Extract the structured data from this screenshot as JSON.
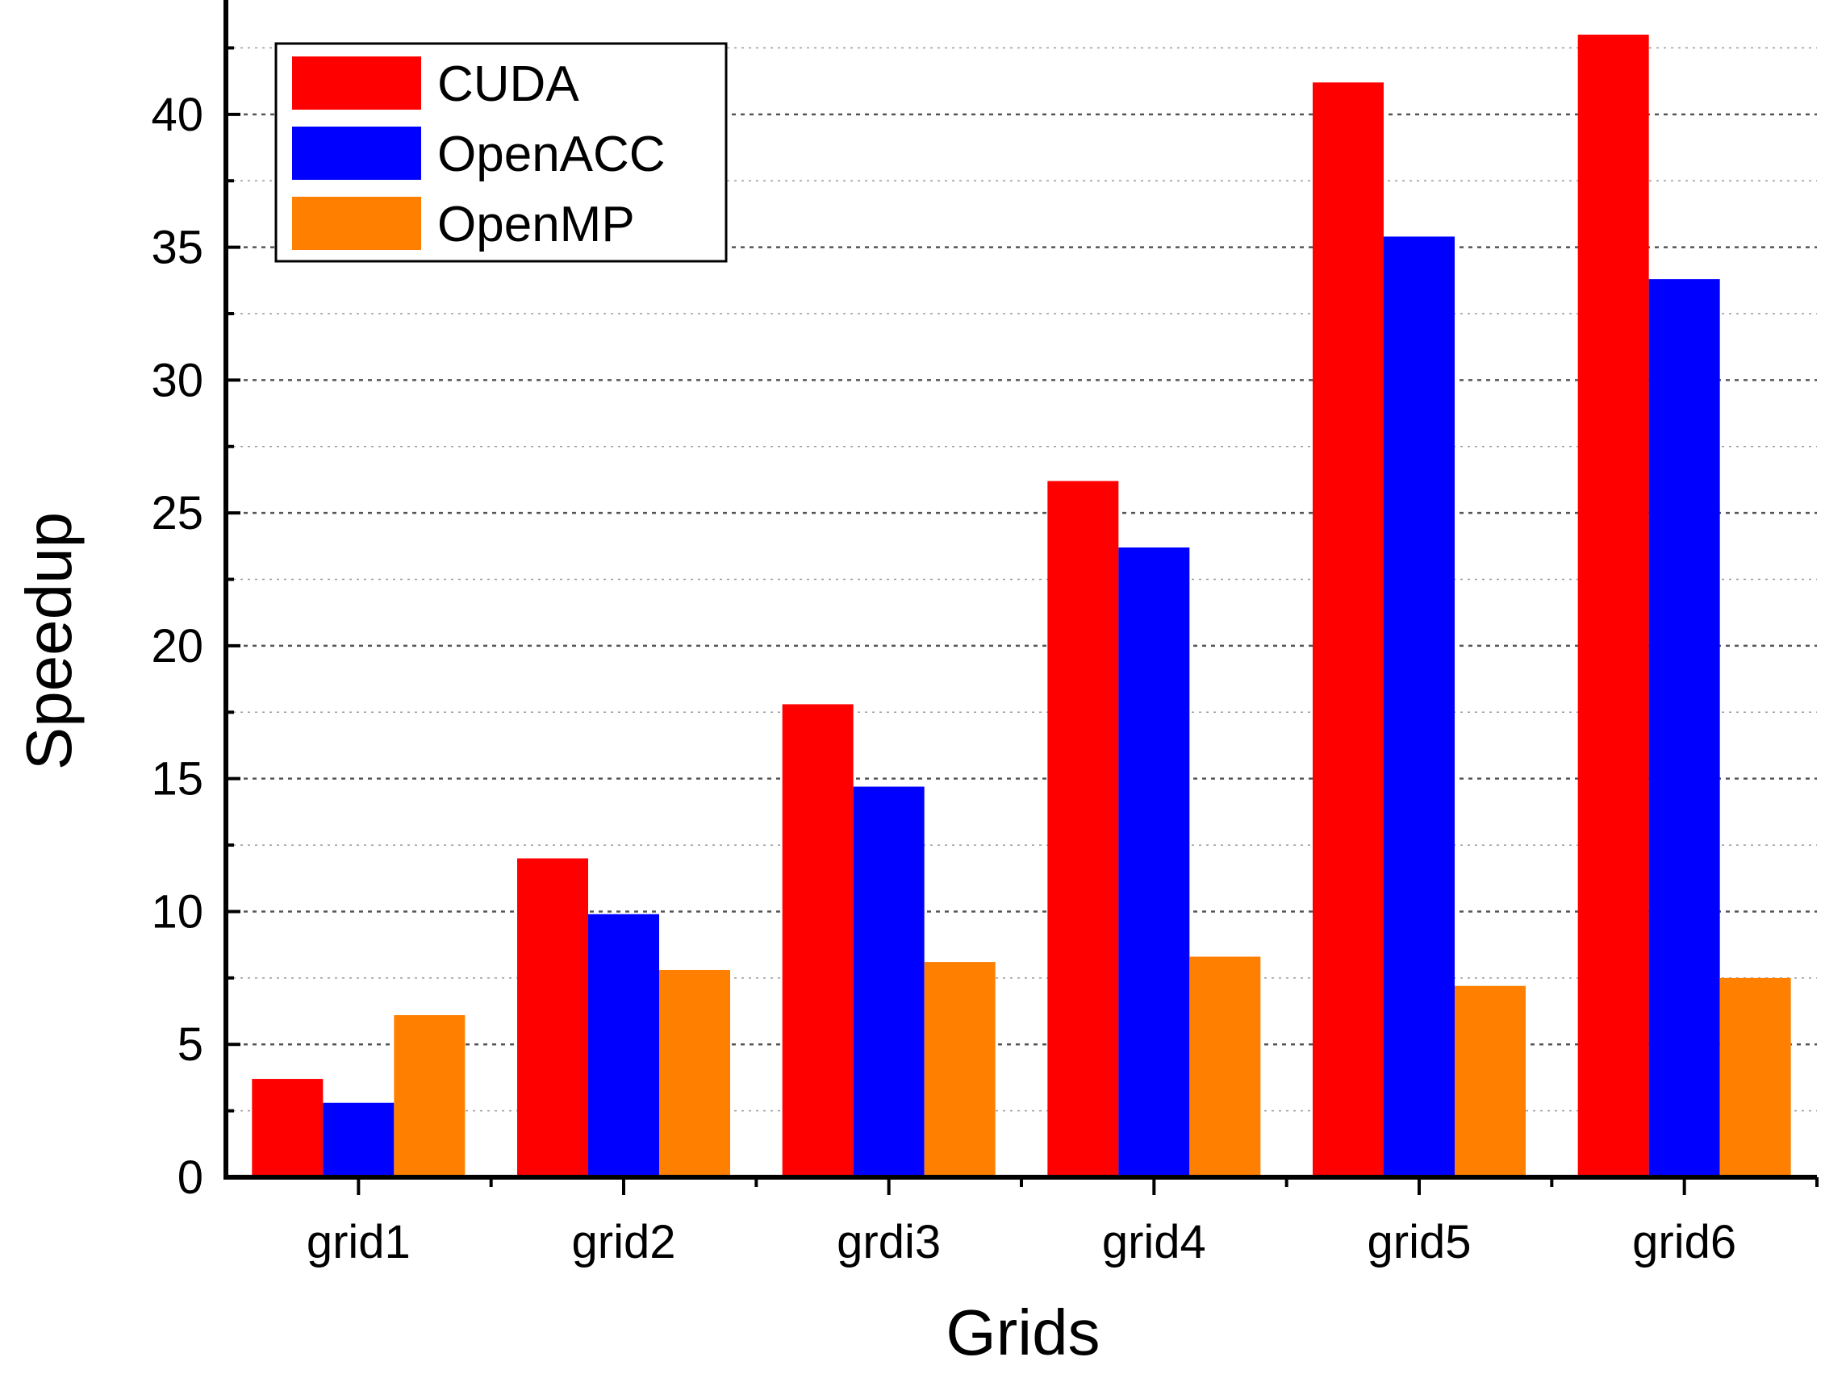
{
  "chart_data": {
    "type": "bar",
    "title": "",
    "xlabel": "Grids",
    "ylabel": "Speedup",
    "categories": [
      "grid1",
      "grid2",
      "grdi3",
      "grid4",
      "grid5",
      "grid6"
    ],
    "series": [
      {
        "name": "CUDA",
        "color": "#ff0000",
        "values": [
          3.7,
          12.0,
          17.8,
          26.2,
          41.2,
          43.0
        ]
      },
      {
        "name": "OpenACC",
        "color": "#0000ff",
        "values": [
          2.8,
          9.9,
          14.7,
          23.7,
          35.4,
          33.8
        ]
      },
      {
        "name": "OpenMP",
        "color": "#ff8000",
        "values": [
          6.1,
          7.8,
          8.1,
          8.3,
          7.2,
          7.5
        ]
      }
    ],
    "ylim": [
      0,
      44
    ],
    "yticks": [
      0,
      5,
      10,
      15,
      20,
      25,
      30,
      35,
      40
    ],
    "grid": true,
    "legend_position": "top-left"
  }
}
